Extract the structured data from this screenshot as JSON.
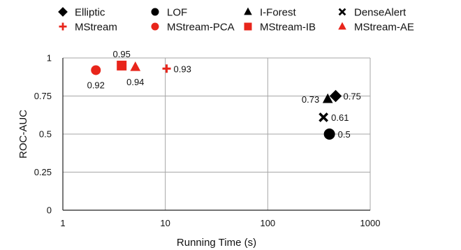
{
  "chart_data": {
    "type": "scatter",
    "title": "",
    "xlabel": "Running Time (s)",
    "ylabel": "ROC-AUC",
    "xscale": "log",
    "xlim": [
      1,
      1000
    ],
    "ylim": [
      0,
      1
    ],
    "xticks": [
      1,
      10,
      100,
      1000
    ],
    "xtick_labels": [
      "1",
      "10",
      "100",
      "1000"
    ],
    "yticks": [
      0,
      0.25,
      0.5,
      0.75,
      1
    ],
    "ytick_labels": [
      "0",
      "0.25",
      "0.5",
      "0.75",
      "1"
    ],
    "grid": true,
    "legend_position": "top",
    "series": [
      {
        "name": "Elliptic",
        "marker": "diamond",
        "color": "#000000",
        "x": 460,
        "y": 0.75,
        "label": "0.75",
        "label_side": "right"
      },
      {
        "name": "LOF",
        "marker": "circle",
        "color": "#000000",
        "x": 400,
        "y": 0.5,
        "label": "0.5",
        "label_side": "right"
      },
      {
        "name": "I-Forest",
        "marker": "triangle",
        "color": "#000000",
        "x": 385,
        "y": 0.73,
        "label": "0.73",
        "label_side": "left"
      },
      {
        "name": "DenseAlert",
        "marker": "x",
        "color": "#000000",
        "x": 350,
        "y": 0.61,
        "label": "0.61",
        "label_side": "right"
      },
      {
        "name": "MStream",
        "marker": "plus",
        "color": "#e8251b",
        "x": 10.3,
        "y": 0.93,
        "label": "0.93",
        "label_side": "right"
      },
      {
        "name": "MStream-PCA",
        "marker": "circle",
        "color": "#e8251b",
        "x": 2.1,
        "y": 0.92,
        "label": "0.92",
        "label_side": "below"
      },
      {
        "name": "MStream-IB",
        "marker": "square",
        "color": "#e8251b",
        "x": 3.75,
        "y": 0.95,
        "label": "0.95",
        "label_side": "above"
      },
      {
        "name": "MStream-AE",
        "marker": "triangle",
        "color": "#e8251b",
        "x": 5.1,
        "y": 0.94,
        "label": "0.94",
        "label_side": "below"
      }
    ]
  }
}
